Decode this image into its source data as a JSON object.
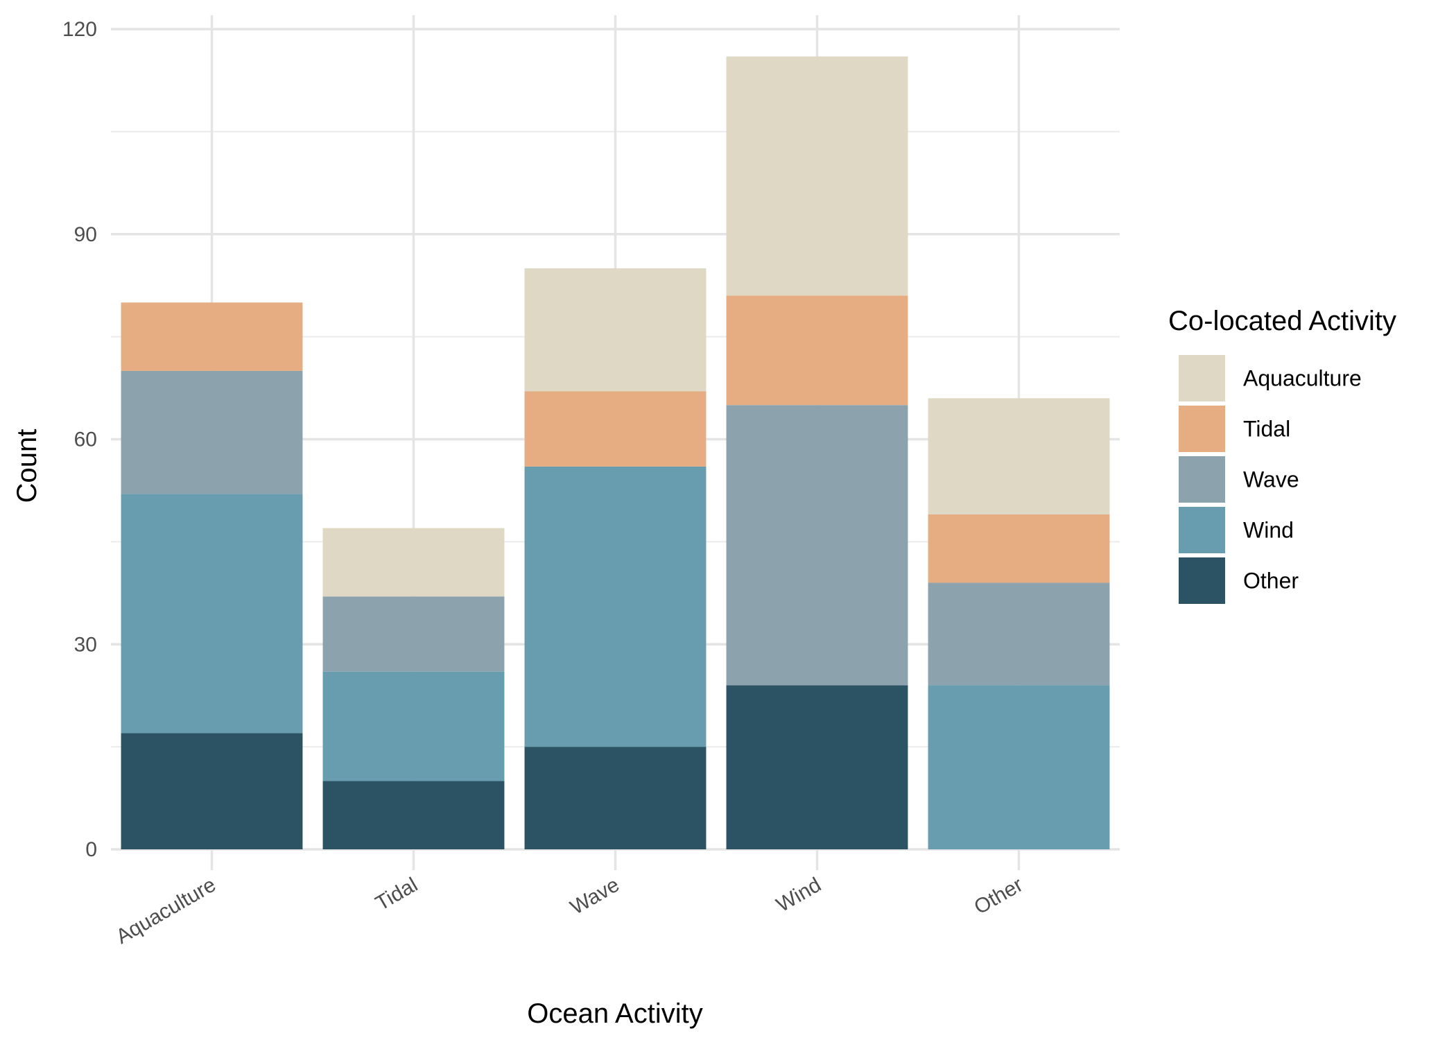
{
  "chart_data": {
    "type": "bar",
    "stacked": true,
    "title": "",
    "xlabel": "Ocean Activity",
    "ylabel": "Count",
    "ylim": [
      0,
      120
    ],
    "yticks": [
      0,
      30,
      60,
      90,
      120
    ],
    "y_minor_gridlines": [
      15,
      45,
      75,
      105
    ],
    "grid": true,
    "legend_title": "Co-located Activity",
    "legend_position": "right",
    "categories": [
      "Aquaculture",
      "Tidal",
      "Wave",
      "Wind",
      "Other"
    ],
    "series": [
      {
        "name": "Other",
        "color": "#2b5364",
        "values": [
          17,
          10,
          15,
          24,
          0
        ]
      },
      {
        "name": "Wind",
        "color": "#689daf",
        "values": [
          35,
          16,
          41,
          0,
          24
        ]
      },
      {
        "name": "Wave",
        "color": "#8ca3ae",
        "values": [
          18,
          11,
          0,
          41,
          15
        ]
      },
      {
        "name": "Tidal",
        "color": "#e6ad82",
        "values": [
          10,
          0,
          11,
          16,
          10
        ]
      },
      {
        "name": "Aquaculture",
        "color": "#dfd8c4",
        "values": [
          0,
          10,
          18,
          35,
          17
        ]
      }
    ],
    "legend_order": [
      "Aquaculture",
      "Tidal",
      "Wave",
      "Wind",
      "Other"
    ]
  }
}
